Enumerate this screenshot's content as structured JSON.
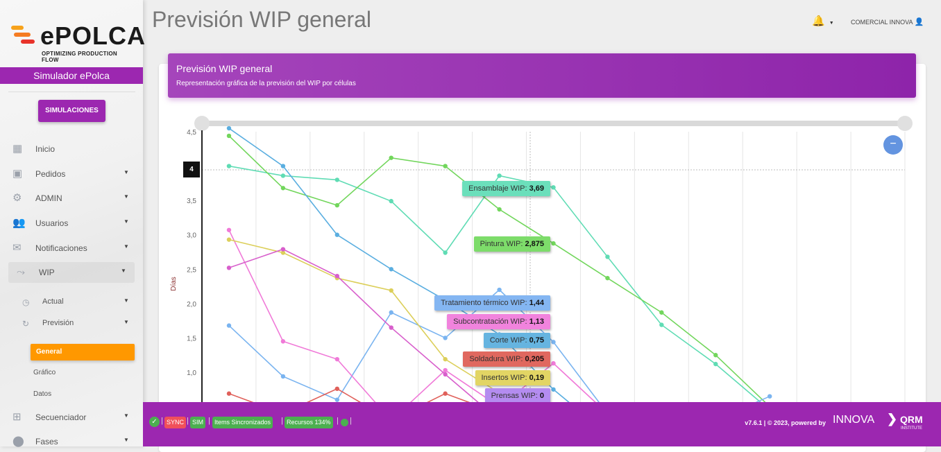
{
  "brand": {
    "name": "ePOLCA",
    "tagline": "OPTIMIZING PRODUCTION FLOW",
    "subtitle": "Simulador ePolca"
  },
  "sidebar": {
    "button": "SIMULACIONES",
    "items": [
      {
        "label": "Inicio",
        "icon": "dashboard-icon"
      },
      {
        "label": "Pedidos",
        "icon": "add-box-icon"
      },
      {
        "label": "ADMIN",
        "icon": "gears-icon"
      },
      {
        "label": "Usuarios",
        "icon": "users-icon"
      },
      {
        "label": "Notificaciones",
        "icon": "envelope-icon"
      },
      {
        "label": "WIP",
        "icon": "chart-search-icon"
      },
      {
        "label": "Secuenciador",
        "icon": "sequencer-icon"
      },
      {
        "label": "Fases",
        "icon": "phases-icon"
      }
    ],
    "wip_sub": [
      {
        "label": "Actual",
        "icon": "clock-icon"
      },
      {
        "label": "Previsión",
        "icon": "history-icon"
      }
    ],
    "prevision_sub": [
      "General",
      "Gráfico",
      "Datos"
    ]
  },
  "header": {
    "title": "Previsión WIP general",
    "user": "COMERCIAL INNOVA"
  },
  "card": {
    "title": "Previsión WIP general",
    "subtitle": "Representación gráfica de la previsión del WIP por células"
  },
  "chart_data": {
    "type": "line",
    "ylabel": "Días",
    "ylim": [
      0,
      4.5
    ],
    "yticks": [
      "4,5",
      "3,5",
      "3,0",
      "2,5",
      "2,0",
      "1,5",
      "1,0"
    ],
    "ytick_values": [
      4.5,
      3.5,
      3.0,
      2.5,
      2.0,
      1.5,
      1.0
    ],
    "crosshair_y_label": "4",
    "categories_count": 13,
    "hovered_index": 6,
    "grid": true,
    "series": [
      {
        "name": "Ensamblaje",
        "color": "#5fdcb4",
        "tip": "#6bdfbb",
        "value_label": "3,69",
        "values": [
          4.0,
          3.86,
          3.8,
          3.49,
          2.74,
          3.86,
          3.69,
          2.68,
          1.69,
          1.12,
          0.45
        ]
      },
      {
        "name": "Pintura",
        "color": "#72d65c",
        "tip": "#7ddc6a",
        "value_label": "2,875",
        "values": [
          4.44,
          3.68,
          3.43,
          4.12,
          4.0,
          3.37,
          2.875,
          2.37,
          1.87,
          1.25,
          0.5
        ]
      },
      {
        "name": "Tratamiento térmico",
        "color": "#7ab4f0",
        "tip": "#84b6f2",
        "value_label": "1,44",
        "values": [
          1.68,
          0.94,
          0.6,
          1.87,
          1.5,
          2.2,
          1.44,
          0.4,
          0.2,
          0.3,
          0.65
        ]
      },
      {
        "name": "Subcontratación",
        "color": "#f07ad8",
        "tip": "#f183dd",
        "value_label": "1,13",
        "values": [
          3.07,
          1.45,
          1.19,
          0.3,
          1.03,
          0.5,
          1.13,
          0.4
        ]
      },
      {
        "name": "Corte",
        "color": "#5aaee0",
        "tip": "#66b4e0",
        "value_label": "0,75",
        "values": [
          4.55,
          4.0,
          3.0,
          2.5,
          2.05,
          1.55,
          0.75,
          0.1
        ]
      },
      {
        "name": "Soldadura",
        "color": "#e0605a",
        "tip": "#e0685f",
        "value_label": "0,205",
        "values": [
          0.69,
          0.4,
          0.76,
          0.3,
          0.69,
          0.4,
          0.205
        ]
      },
      {
        "name": "Insertos",
        "color": "#dccf5a",
        "tip": "#e2d564",
        "value_label": "0,19",
        "values": [
          2.93,
          2.74,
          2.37,
          2.19,
          1.19,
          0.7,
          0.19
        ]
      },
      {
        "name": "Prensas",
        "color": "#d85fcc",
        "tip": "#b48cf0",
        "value_label": "0",
        "values": [
          2.52,
          2.79,
          2.4,
          1.65,
          0.97,
          0.3,
          0
        ]
      }
    ]
  },
  "footer": {
    "badges": [
      {
        "label": "SYNC",
        "color": "#f0505a"
      },
      {
        "label": "SIM",
        "color": "#4caf50"
      },
      {
        "label": "Items Sincronizados",
        "color": "#4caf50"
      },
      {
        "label": "Recursos 134%",
        "color": "#4caf50"
      }
    ],
    "version": "v7.6.1 | © 2023, powered by",
    "innova": "INNOVA",
    "qrm": "QRM",
    "qrm_sub": "INSTITUTE"
  }
}
